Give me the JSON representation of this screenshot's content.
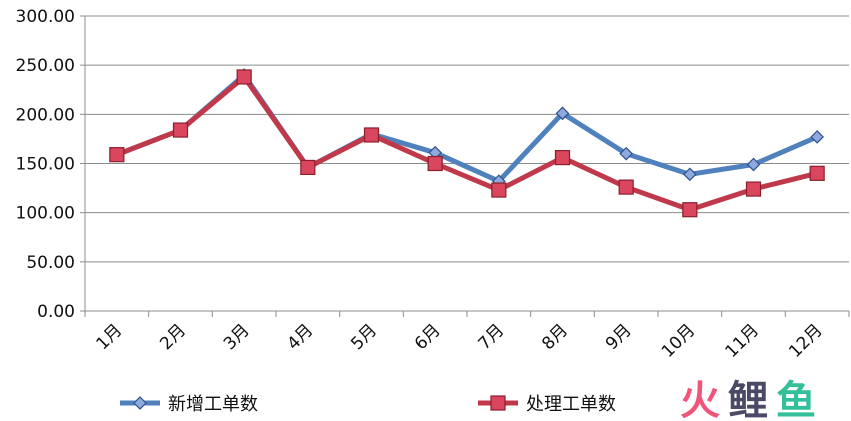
{
  "chart_data": {
    "type": "line",
    "categories": [
      "1月",
      "2月",
      "3月",
      "4月",
      "5月",
      "6月",
      "7月",
      "8月",
      "9月",
      "10月",
      "11月",
      "12月"
    ],
    "series": [
      {
        "name": "新增工单数",
        "color": "#4f81bd",
        "marker": "diamond",
        "values": [
          159,
          184,
          240,
          146,
          180,
          161,
          132,
          201,
          160,
          139,
          149,
          177
        ]
      },
      {
        "name": "处理工单数",
        "color": "#c0394b",
        "marker": "square",
        "values": [
          159,
          184,
          238,
          146,
          179,
          150,
          123,
          156,
          126,
          103,
          124,
          140
        ]
      }
    ],
    "ylim": [
      0,
      300
    ],
    "yticks": [
      "0.00",
      "50.00",
      "100.00",
      "150.00",
      "200.00",
      "250.00",
      "300.00"
    ],
    "grid": true,
    "legend": "bottom"
  },
  "watermark": {
    "parts": [
      {
        "text": "火",
        "color": "#f0547a"
      },
      {
        "text": "鲤",
        "color": "#4a4a66"
      },
      {
        "text": "鱼",
        "color": "#33bf9a"
      }
    ]
  }
}
